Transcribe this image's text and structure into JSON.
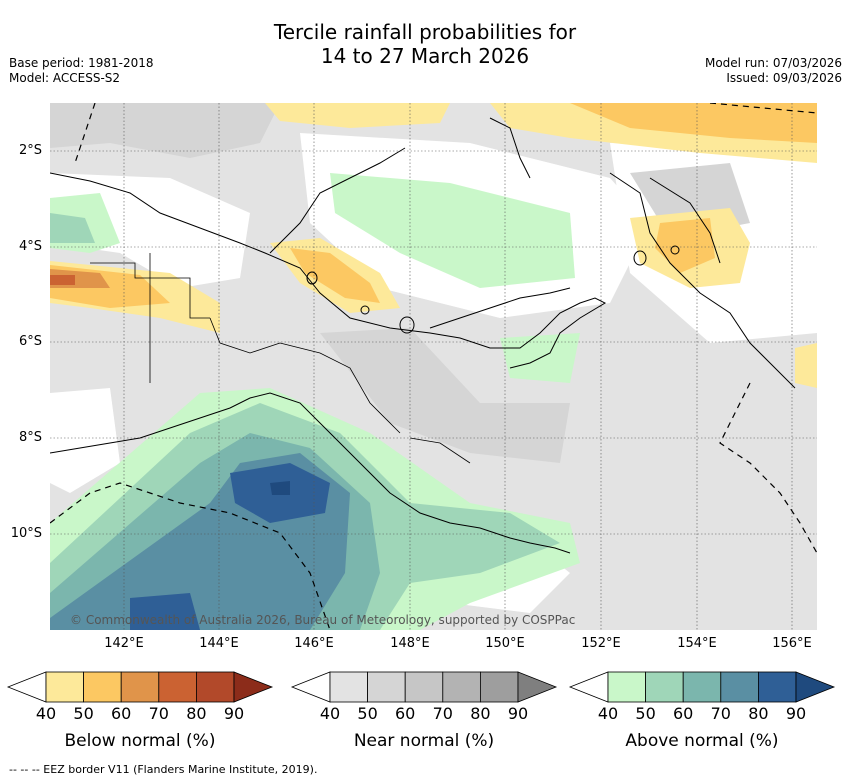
{
  "title_line1": "Tercile rainfall probabilities for",
  "title_line2": "14 to 27 March 2026",
  "base_period": "Base period: 1981-2018",
  "model": "Model: ACCESS-S2",
  "model_run": "Model run: 07/03/2026",
  "issued": "Issued: 09/03/2026",
  "copyright": "© Commonwealth of Australia 2026, Bureau of Meteorology, supported by COSPPac",
  "footnote": "--  --  -- EEZ border V11 (Flanders Marine Institute, 2019).",
  "lat_labels": [
    "2°S",
    "4°S",
    "6°S",
    "8°S",
    "10°S"
  ],
  "lon_labels": [
    "142°E",
    "144°E",
    "146°E",
    "148°E",
    "150°E",
    "152°E",
    "154°E",
    "156°E"
  ],
  "colorbars": {
    "below": {
      "label": "Below normal (%)",
      "ticks": [
        "40",
        "50",
        "60",
        "70",
        "80",
        "90"
      ],
      "colors": [
        "#ffffff",
        "#fde99a",
        "#fcc862",
        "#e0944a",
        "#cb6232",
        "#b2492a",
        "#8c2c1a"
      ]
    },
    "near": {
      "label": "Near normal (%)",
      "ticks": [
        "40",
        "50",
        "60",
        "70",
        "80",
        "90"
      ],
      "colors": [
        "#ffffff",
        "#e3e3e3",
        "#d5d5d5",
        "#c6c6c6",
        "#b3b3b3",
        "#9e9e9e",
        "#7f7f7f"
      ]
    },
    "above": {
      "label": "Above normal (%)",
      "ticks": [
        "40",
        "50",
        "60",
        "70",
        "80",
        "90"
      ],
      "colors": [
        "#ffffff",
        "#c9f7c9",
        "#9fd6b8",
        "#7bb6ad",
        "#5a8fa3",
        "#2f5f96",
        "#1f4a7e"
      ]
    }
  }
}
